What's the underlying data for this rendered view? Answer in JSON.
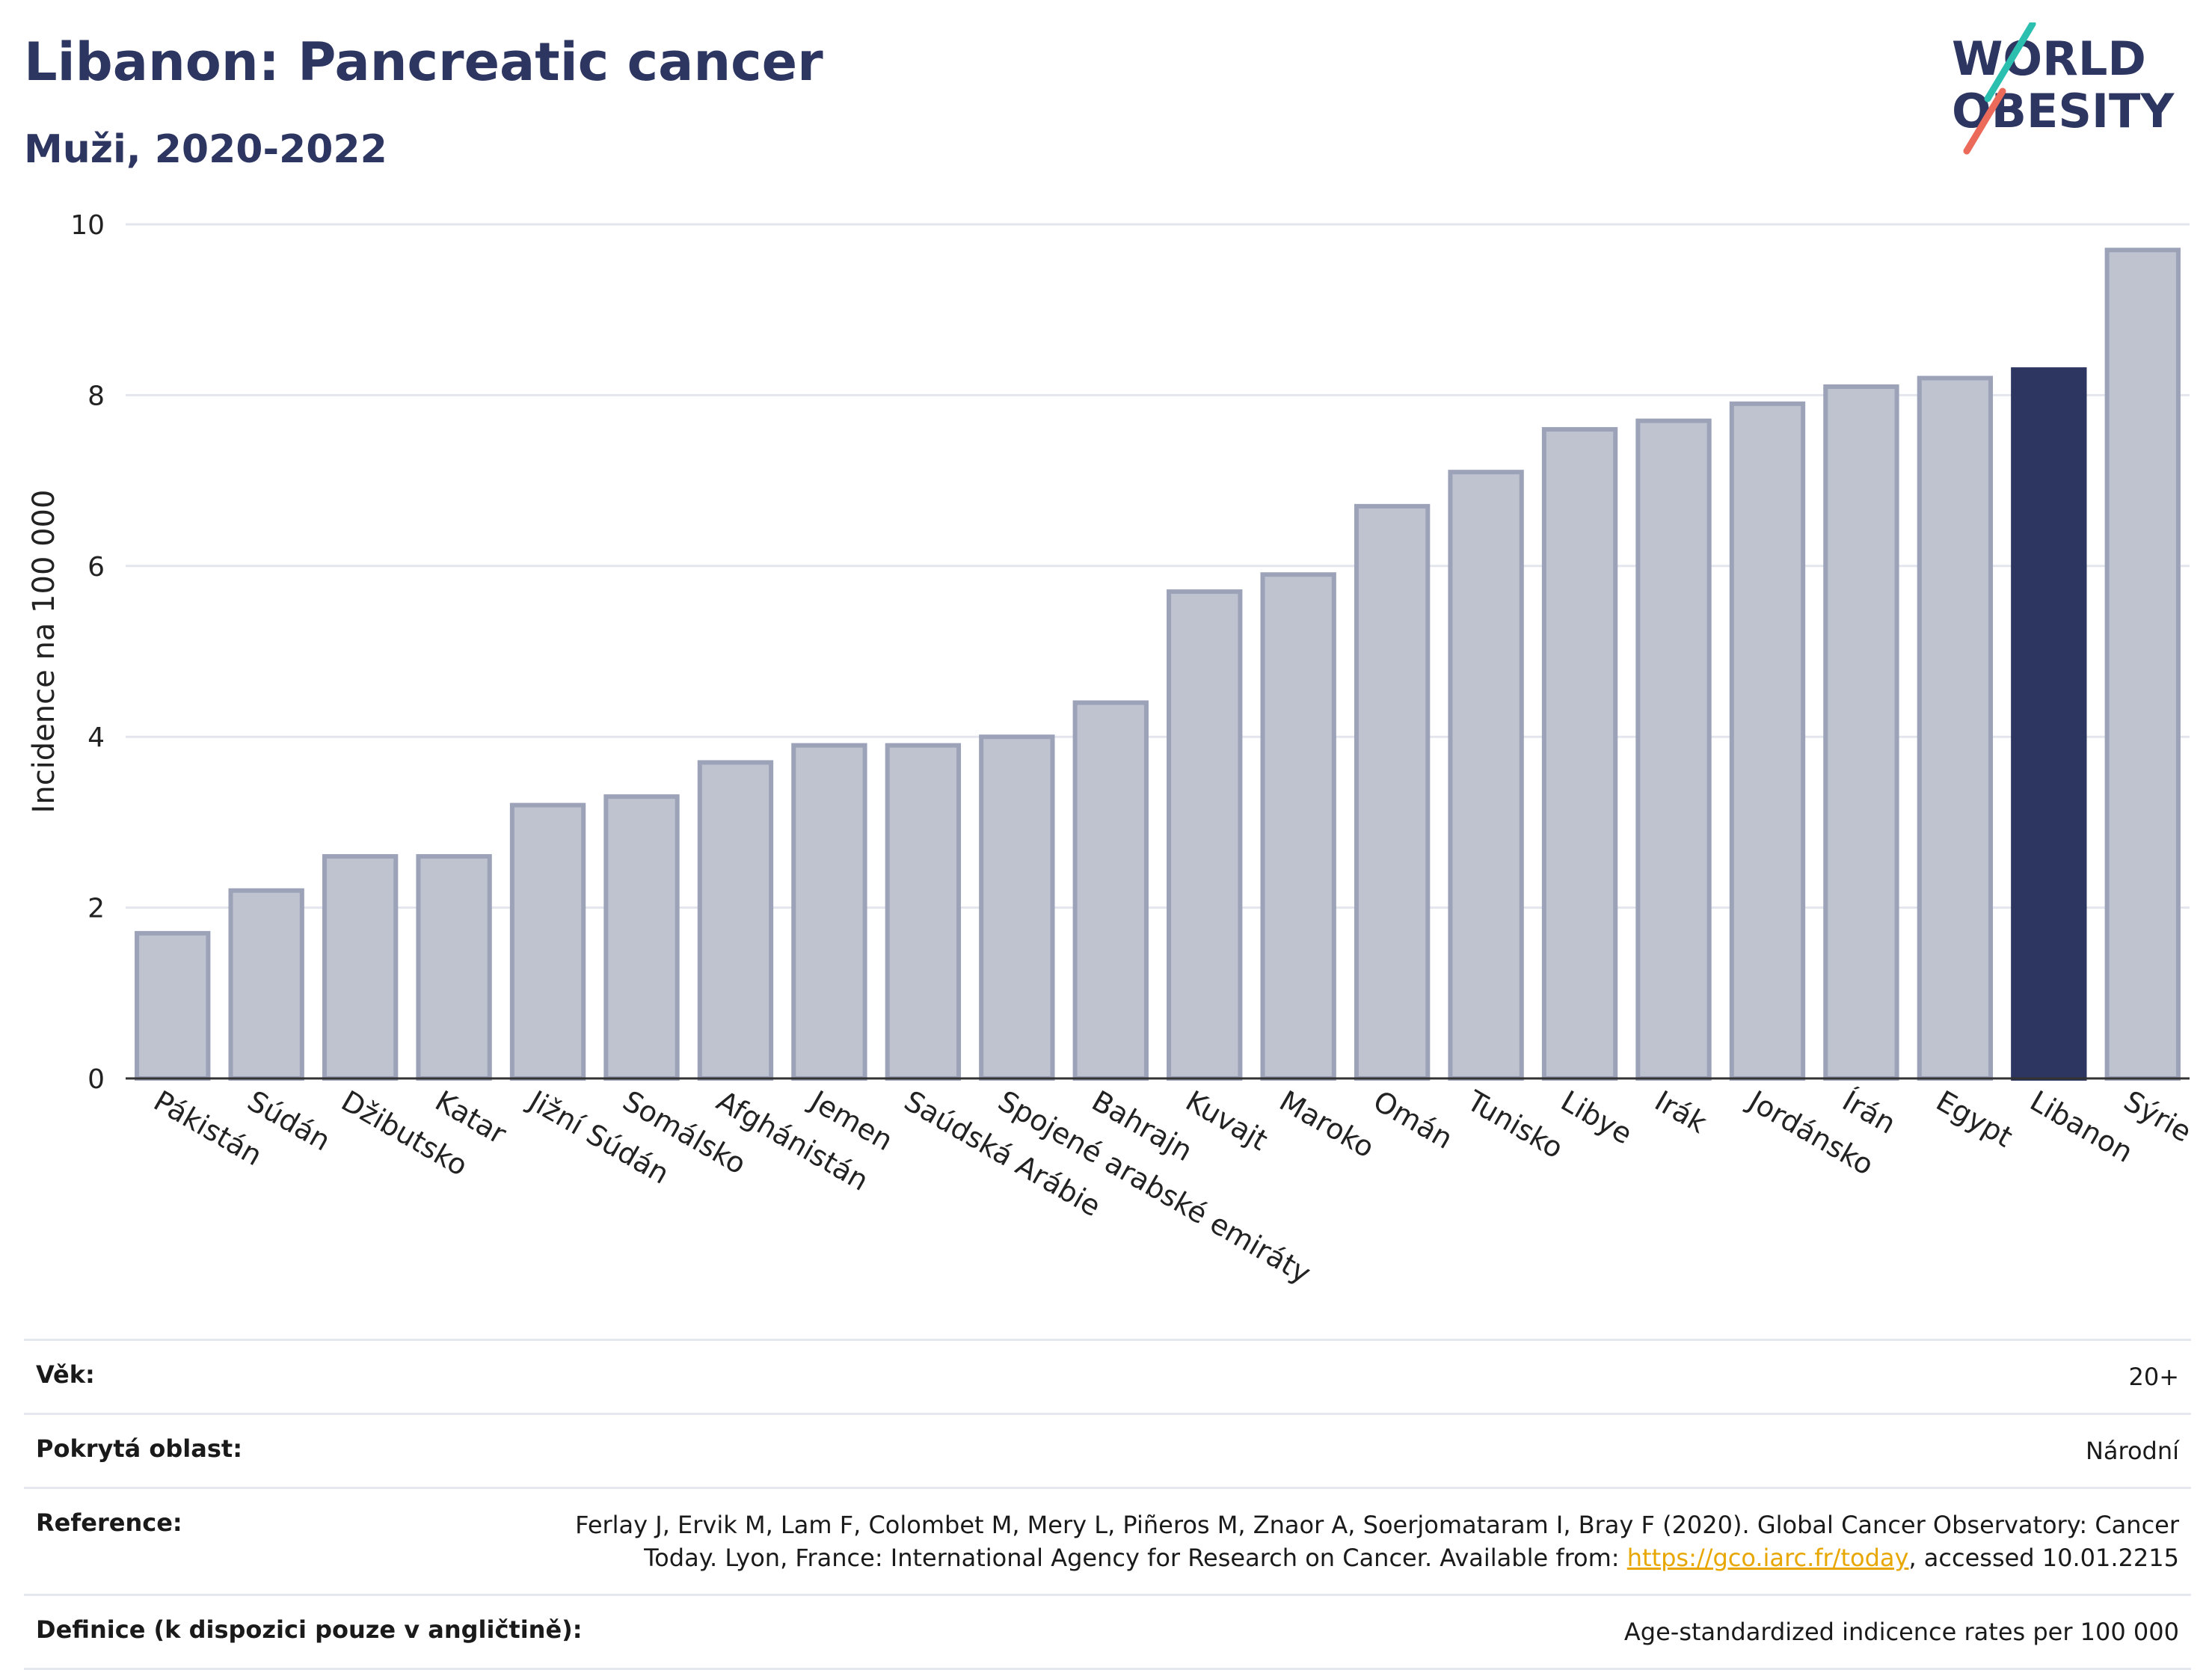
{
  "header": {
    "title": "Libanon: Pancreatic cancer",
    "subtitle": "Muži, 2020-2022"
  },
  "logo": {
    "line1": "WORLD",
    "line2": "OBESITY"
  },
  "colors": {
    "bar": "#bfc3d0",
    "bar_border": "#9ca2b8",
    "highlight": "#2d3561",
    "grid": "#e4e6ee"
  },
  "chart_data": {
    "type": "bar",
    "ylabel": "Incidence na 100 000",
    "ylim": [
      0,
      10
    ],
    "yticks": [
      0,
      2,
      4,
      6,
      8,
      10
    ],
    "grid": true,
    "highlight": "Libanon",
    "categories": [
      "Pákistán",
      "Súdán",
      "Džibutsko",
      "Katar",
      "Jižní Súdán",
      "Somálsko",
      "Afghánistán",
      "Jemen",
      "Saúdská Arábie",
      "Spojené arabské emiráty",
      "Bahrajn",
      "Kuvajt",
      "Maroko",
      "Omán",
      "Tunisko",
      "Libye",
      "Irák",
      "Jordánsko",
      "Írán",
      "Egypt",
      "Libanon",
      "Sýrie"
    ],
    "values": [
      1.7,
      2.2,
      2.6,
      2.6,
      3.2,
      3.3,
      3.7,
      3.9,
      3.9,
      4.0,
      4.4,
      5.7,
      5.9,
      6.7,
      7.1,
      7.6,
      7.7,
      7.9,
      8.1,
      8.2,
      8.3,
      9.7
    ]
  },
  "meta": {
    "age_label": "Věk:",
    "age_value": "20+",
    "area_label": "Pokrytá oblast:",
    "area_value": "Národní",
    "ref_label": "Reference:",
    "ref_text_1": "Ferlay J, Ervik M, Lam F, Colombet M, Mery L, Piñeros M, Znaor A, Soerjomataram I, Bray F (2020). Global Cancer Observatory: Cancer Today. Lyon, France: International Agency for Research on Cancer. Available from: ",
    "ref_link": "https://gco.iarc.fr/today",
    "ref_text_2": ", accessed 10.01.2215",
    "def_label": "Definice (k dispozici pouze v angličtině):",
    "def_value": "Age-standardized indicence rates per 100 000"
  }
}
